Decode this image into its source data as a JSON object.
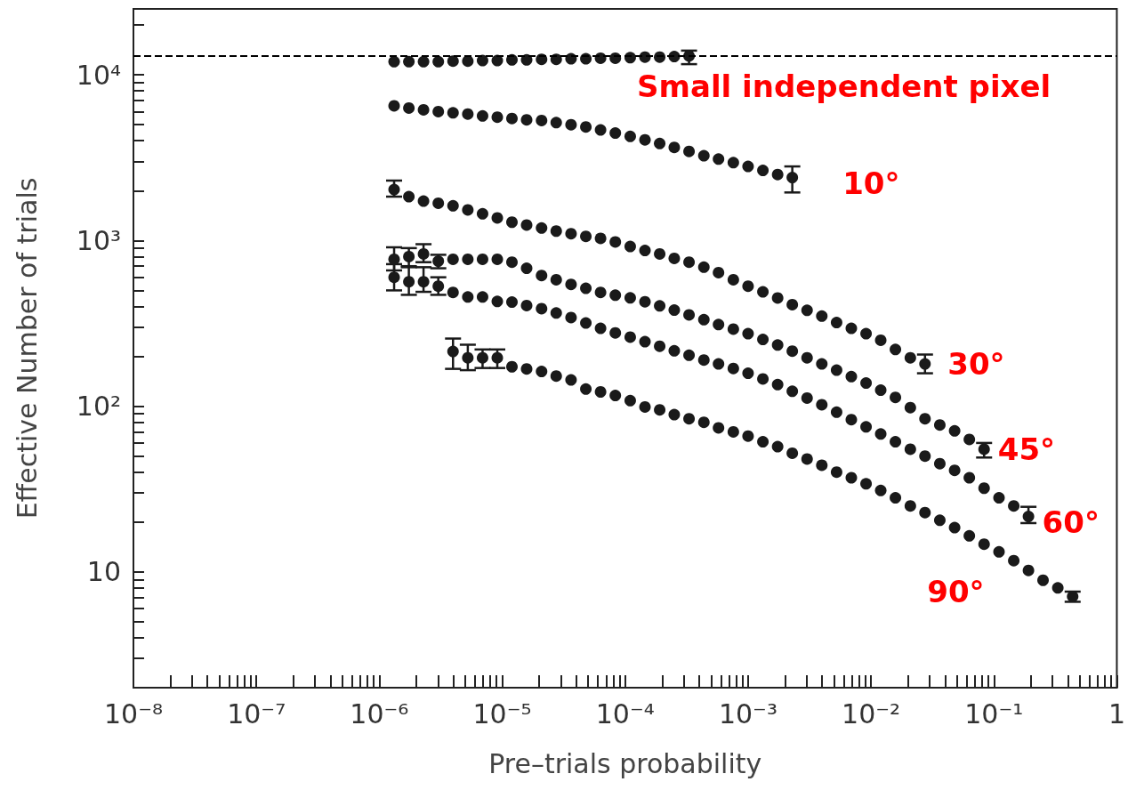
{
  "chart_data": {
    "type": "scatter",
    "xlabel": "Pre–trials probability",
    "ylabel": "Effective Number of trials",
    "log": "xy",
    "grid": false,
    "legend": false,
    "marker": "circle",
    "xlim": [
      1e-08,
      1
    ],
    "ylim": [
      2,
      25000
    ],
    "xticks": [
      {
        "value": 1e-08,
        "label": "10⁻⁸"
      },
      {
        "value": 2e-08,
        "label": null
      },
      {
        "value": 3e-08,
        "label": null
      },
      {
        "value": 4e-08,
        "label": null
      },
      {
        "value": 5e-08,
        "label": null
      },
      {
        "value": 6e-08,
        "label": null
      },
      {
        "value": 7e-08,
        "label": null
      },
      {
        "value": 8e-08,
        "label": null
      },
      {
        "value": 9e-08,
        "label": null
      },
      {
        "value": 1e-07,
        "label": "10⁻⁷"
      },
      {
        "value": 2e-07,
        "label": null
      },
      {
        "value": 3e-07,
        "label": null
      },
      {
        "value": 4e-07,
        "label": null
      },
      {
        "value": 5e-07,
        "label": null
      },
      {
        "value": 6e-07,
        "label": null
      },
      {
        "value": 7e-07,
        "label": null
      },
      {
        "value": 8e-07,
        "label": null
      },
      {
        "value": 9e-07,
        "label": null
      },
      {
        "value": 1e-06,
        "label": "10⁻⁶"
      },
      {
        "value": 2e-06,
        "label": null
      },
      {
        "value": 3e-06,
        "label": null
      },
      {
        "value": 4e-06,
        "label": null
      },
      {
        "value": 5e-06,
        "label": null
      },
      {
        "value": 6e-06,
        "label": null
      },
      {
        "value": 7e-06,
        "label": null
      },
      {
        "value": 8e-06,
        "label": null
      },
      {
        "value": 9e-06,
        "label": null
      },
      {
        "value": 1e-05,
        "label": "10⁻⁵"
      },
      {
        "value": 2e-05,
        "label": null
      },
      {
        "value": 3e-05,
        "label": null
      },
      {
        "value": 4e-05,
        "label": null
      },
      {
        "value": 5e-05,
        "label": null
      },
      {
        "value": 6e-05,
        "label": null
      },
      {
        "value": 7e-05,
        "label": null
      },
      {
        "value": 8e-05,
        "label": null
      },
      {
        "value": 9e-05,
        "label": null
      },
      {
        "value": 0.0001,
        "label": "10⁻⁴"
      },
      {
        "value": 0.0002,
        "label": null
      },
      {
        "value": 0.0003,
        "label": null
      },
      {
        "value": 0.0004,
        "label": null
      },
      {
        "value": 0.0005,
        "label": null
      },
      {
        "value": 0.0006,
        "label": null
      },
      {
        "value": 0.0007,
        "label": null
      },
      {
        "value": 0.0008,
        "label": null
      },
      {
        "value": 0.0009,
        "label": null
      },
      {
        "value": 0.001,
        "label": "10⁻³"
      },
      {
        "value": 0.002,
        "label": null
      },
      {
        "value": 0.003,
        "label": null
      },
      {
        "value": 0.004,
        "label": null
      },
      {
        "value": 0.005,
        "label": null
      },
      {
        "value": 0.006,
        "label": null
      },
      {
        "value": 0.007,
        "label": null
      },
      {
        "value": 0.008,
        "label": null
      },
      {
        "value": 0.009,
        "label": null
      },
      {
        "value": 0.01,
        "label": "10⁻²"
      },
      {
        "value": 0.02,
        "label": null
      },
      {
        "value": 0.03,
        "label": null
      },
      {
        "value": 0.04,
        "label": null
      },
      {
        "value": 0.05,
        "label": null
      },
      {
        "value": 0.06,
        "label": null
      },
      {
        "value": 0.07,
        "label": null
      },
      {
        "value": 0.08,
        "label": null
      },
      {
        "value": 0.09,
        "label": null
      },
      {
        "value": 0.1,
        "label": "10⁻¹"
      },
      {
        "value": 0.2,
        "label": null
      },
      {
        "value": 0.3,
        "label": null
      },
      {
        "value": 0.4,
        "label": null
      },
      {
        "value": 0.5,
        "label": null
      },
      {
        "value": 0.6,
        "label": null
      },
      {
        "value": 0.7,
        "label": null
      },
      {
        "value": 0.8,
        "label": null
      },
      {
        "value": 0.9,
        "label": null
      },
      1
    ],
    "yticks": [
      {
        "value": 2,
        "label": null
      },
      {
        "value": 3,
        "label": null
      },
      {
        "value": 4,
        "label": null
      },
      {
        "value": 5,
        "label": null
      },
      {
        "value": 6,
        "label": null
      },
      {
        "value": 7,
        "label": null
      },
      {
        "value": 8,
        "label": null
      },
      {
        "value": 9,
        "label": null
      },
      10,
      {
        "value": 20,
        "label": null
      },
      {
        "value": 30,
        "label": null
      },
      {
        "value": 40,
        "label": null
      },
      {
        "value": 50,
        "label": null
      },
      {
        "value": 60,
        "label": null
      },
      {
        "value": 70,
        "label": null
      },
      {
        "value": 80,
        "label": null
      },
      {
        "value": 90,
        "label": null
      },
      {
        "value": 100,
        "label": "10²"
      },
      {
        "value": 200,
        "label": null
      },
      {
        "value": 300,
        "label": null
      },
      {
        "value": 400,
        "label": null
      },
      {
        "value": 500,
        "label": null
      },
      {
        "value": 600,
        "label": null
      },
      {
        "value": 700,
        "label": null
      },
      {
        "value": 800,
        "label": null
      },
      {
        "value": 900,
        "label": null
      },
      {
        "value": 1000,
        "label": "10³"
      },
      {
        "value": 2000,
        "label": null
      },
      {
        "value": 3000,
        "label": null
      },
      {
        "value": 4000,
        "label": null
      },
      {
        "value": 5000,
        "label": null
      },
      {
        "value": 6000,
        "label": null
      },
      {
        "value": 7000,
        "label": null
      },
      {
        "value": 8000,
        "label": null
      },
      {
        "value": 9000,
        "label": null
      },
      {
        "value": 10000,
        "label": "10⁴"
      },
      {
        "value": 20000,
        "label": null
      }
    ],
    "ref_lines": [
      {
        "axis": "y",
        "value": 13000,
        "line_style": "dashed",
        "color": "#000000"
      }
    ],
    "series": [
      {
        "name": "Small independent pixel",
        "color": "#1a1a1a",
        "x": [
          1.32e-06,
          1.74e-06,
          2.29e-06,
          3.02e-06,
          3.98e-06,
          5.25e-06,
          6.92e-06,
          9.12e-06,
          1.2e-05,
          1.58e-05,
          2.09e-05,
          2.75e-05,
          3.63e-05,
          4.79e-05,
          6.31e-05,
          8.32e-05,
          0.00011,
          0.000145,
          0.000191,
          0.000251,
          0.000331
        ],
        "values": [
          12000,
          12000,
          12000,
          12000,
          12100,
          12100,
          12200,
          12200,
          12300,
          12300,
          12400,
          12400,
          12500,
          12500,
          12600,
          12600,
          12700,
          12800,
          12800,
          12900,
          13000
        ],
        "errors": [
          null,
          null,
          null,
          null,
          null,
          null,
          null,
          null,
          null,
          null,
          null,
          null,
          null,
          null,
          null,
          null,
          null,
          null,
          null,
          null,
          [
            11600,
            14000
          ]
        ]
      },
      {
        "name": "10°",
        "color": "#1a1a1a",
        "x": [
          1.32e-06,
          1.74e-06,
          2.29e-06,
          3.02e-06,
          3.98e-06,
          5.25e-06,
          6.92e-06,
          9.12e-06,
          1.2e-05,
          1.58e-05,
          2.09e-05,
          2.75e-05,
          3.63e-05,
          4.79e-05,
          6.31e-05,
          8.32e-05,
          0.00011,
          0.000145,
          0.000191,
          0.000251,
          0.000331,
          0.000437,
          0.000575,
          0.000759,
          0.001,
          0.00132,
          0.00174,
          0.00229
        ],
        "values": [
          6500,
          6300,
          6150,
          6000,
          5900,
          5800,
          5650,
          5550,
          5450,
          5350,
          5300,
          5150,
          5000,
          4850,
          4650,
          4450,
          4250,
          4050,
          3850,
          3650,
          3450,
          3250,
          3100,
          2950,
          2800,
          2650,
          2500,
          2400
        ],
        "errors": [
          null,
          null,
          null,
          null,
          null,
          null,
          null,
          null,
          null,
          null,
          null,
          null,
          null,
          null,
          null,
          null,
          null,
          null,
          null,
          null,
          null,
          null,
          null,
          null,
          null,
          null,
          null,
          [
            1950,
            2800
          ]
        ]
      },
      {
        "name": "30°",
        "color": "#1a1a1a",
        "x": [
          1.32e-06,
          1.74e-06,
          2.29e-06,
          3.02e-06,
          3.98e-06,
          5.25e-06,
          6.92e-06,
          9.12e-06,
          1.2e-05,
          1.58e-05,
          2.09e-05,
          2.75e-05,
          3.63e-05,
          4.79e-05,
          6.31e-05,
          8.32e-05,
          0.00011,
          0.000145,
          0.000191,
          0.000251,
          0.000331,
          0.000437,
          0.000575,
          0.000759,
          0.001,
          0.00132,
          0.00174,
          0.00229,
          0.00302,
          0.00398,
          0.00525,
          0.00692,
          0.00912,
          0.012,
          0.0158,
          0.0209,
          0.0275
        ],
        "values": [
          2030,
          1840,
          1730,
          1680,
          1620,
          1530,
          1450,
          1370,
          1290,
          1240,
          1190,
          1140,
          1100,
          1060,
          1030,
          980,
          920,
          870,
          830,
          780,
          740,
          690,
          640,
          580,
          530,
          490,
          450,
          410,
          379,
          350,
          320,
          295,
          274,
          250,
          220,
          196,
          180
        ],
        "errors": [
          [
            1840,
            2300
          ],
          null,
          null,
          null,
          null,
          null,
          null,
          null,
          null,
          null,
          null,
          null,
          null,
          null,
          null,
          null,
          null,
          null,
          null,
          null,
          null,
          null,
          null,
          null,
          null,
          null,
          null,
          null,
          null,
          null,
          null,
          null,
          null,
          null,
          null,
          null,
          [
            158,
            205
          ]
        ]
      },
      {
        "name": "45°",
        "color": "#1a1a1a",
        "x": [
          1.32e-06,
          1.74e-06,
          2.29e-06,
          3.02e-06,
          3.98e-06,
          5.25e-06,
          6.92e-06,
          9.12e-06,
          1.2e-05,
          1.58e-05,
          2.09e-05,
          2.75e-05,
          3.63e-05,
          4.79e-05,
          6.31e-05,
          8.32e-05,
          0.00011,
          0.000145,
          0.000191,
          0.000251,
          0.000331,
          0.000437,
          0.000575,
          0.000759,
          0.001,
          0.00132,
          0.00174,
          0.00229,
          0.00302,
          0.00398,
          0.00525,
          0.00692,
          0.00912,
          0.012,
          0.0158,
          0.0209,
          0.0275,
          0.0363,
          0.0479,
          0.0631,
          0.0832
        ],
        "values": [
          770,
          800,
          830,
          750,
          770,
          770,
          770,
          770,
          740,
          680,
          615,
          580,
          543,
          515,
          486,
          468,
          451,
          427,
          403,
          380,
          356,
          333,
          311,
          292,
          274,
          253,
          234,
          215,
          196,
          180,
          165,
          151,
          138,
          125,
          113,
          98,
          84,
          77,
          71,
          63,
          55
        ],
        "errors": [
          [
            660,
            910
          ],
          [
            690,
            900
          ],
          [
            740,
            950
          ],
          [
            680,
            820
          ],
          null,
          null,
          null,
          null,
          null,
          null,
          null,
          null,
          null,
          null,
          null,
          null,
          null,
          null,
          null,
          null,
          null,
          null,
          null,
          null,
          null,
          null,
          null,
          null,
          null,
          null,
          null,
          null,
          null,
          null,
          null,
          null,
          null,
          null,
          null,
          null,
          [
            49,
            60
          ]
        ]
      },
      {
        "name": "60°",
        "color": "#1a1a1a",
        "x": [
          1.32e-06,
          1.74e-06,
          2.29e-06,
          3.02e-06,
          3.98e-06,
          5.25e-06,
          6.92e-06,
          9.12e-06,
          1.2e-05,
          1.58e-05,
          2.09e-05,
          2.75e-05,
          3.63e-05,
          4.79e-05,
          6.31e-05,
          8.32e-05,
          0.00011,
          0.000145,
          0.000191,
          0.000251,
          0.000331,
          0.000437,
          0.000575,
          0.000759,
          0.001,
          0.00132,
          0.00174,
          0.00229,
          0.00302,
          0.00398,
          0.00525,
          0.00692,
          0.00912,
          0.012,
          0.0158,
          0.0209,
          0.0275,
          0.0363,
          0.0479,
          0.0631,
          0.0832,
          0.11,
          0.145,
          0.191
        ],
        "values": [
          600,
          564,
          564,
          530,
          486,
          456,
          456,
          429,
          425,
          405,
          388,
          365,
          343,
          318,
          295,
          277,
          261,
          245,
          230,
          216,
          203,
          190,
          180,
          169,
          158,
          146,
          135,
          123,
          112,
          102,
          92,
          83,
          75,
          68,
          61,
          55,
          50,
          45,
          41,
          37,
          32,
          28,
          25,
          21.6
        ],
        "errors": [
          [
            500,
            720
          ],
          [
            470,
            700
          ],
          [
            490,
            690
          ],
          [
            470,
            600
          ],
          null,
          null,
          null,
          null,
          null,
          null,
          null,
          null,
          null,
          null,
          null,
          null,
          null,
          null,
          null,
          null,
          null,
          null,
          null,
          null,
          null,
          null,
          null,
          null,
          null,
          null,
          null,
          null,
          null,
          null,
          null,
          null,
          null,
          null,
          null,
          null,
          null,
          null,
          null,
          [
            19.7,
            24.7
          ]
        ]
      },
      {
        "name": "90°",
        "color": "#1a1a1a",
        "x": [
          3.98e-06,
          5.25e-06,
          6.92e-06,
          9.12e-06,
          1.2e-05,
          1.58e-05,
          2.09e-05,
          2.75e-05,
          3.63e-05,
          4.79e-05,
          6.31e-05,
          8.32e-05,
          0.00011,
          0.000145,
          0.000191,
          0.000251,
          0.000331,
          0.000437,
          0.000575,
          0.000759,
          0.001,
          0.00132,
          0.00174,
          0.00229,
          0.00302,
          0.00398,
          0.00525,
          0.00692,
          0.00912,
          0.012,
          0.0158,
          0.0209,
          0.0275,
          0.0363,
          0.0479,
          0.0631,
          0.0832,
          0.11,
          0.145,
          0.191,
          0.251,
          0.331,
          0.437
        ],
        "values": [
          214,
          196,
          196,
          196,
          173,
          168,
          162,
          152,
          144,
          127,
          122,
          116,
          108,
          99,
          95,
          89,
          84,
          80,
          74,
          70,
          66,
          61,
          57,
          52,
          48,
          44,
          40,
          37,
          34,
          31,
          28,
          25,
          22.8,
          20.5,
          18.5,
          16.5,
          14.7,
          13.2,
          11.7,
          10.2,
          8.9,
          8.0,
          7.1
        ],
        "errors": [
          [
            168,
            256
          ],
          [
            165,
            235
          ],
          [
            170,
            220
          ],
          [
            170,
            220
          ],
          null,
          null,
          null,
          null,
          null,
          null,
          null,
          null,
          null,
          null,
          null,
          null,
          null,
          null,
          null,
          null,
          null,
          null,
          null,
          null,
          null,
          null,
          null,
          null,
          null,
          null,
          null,
          null,
          null,
          null,
          null,
          null,
          null,
          null,
          null,
          null,
          null,
          null,
          [
            6.6,
            7.6
          ]
        ]
      }
    ]
  }
}
